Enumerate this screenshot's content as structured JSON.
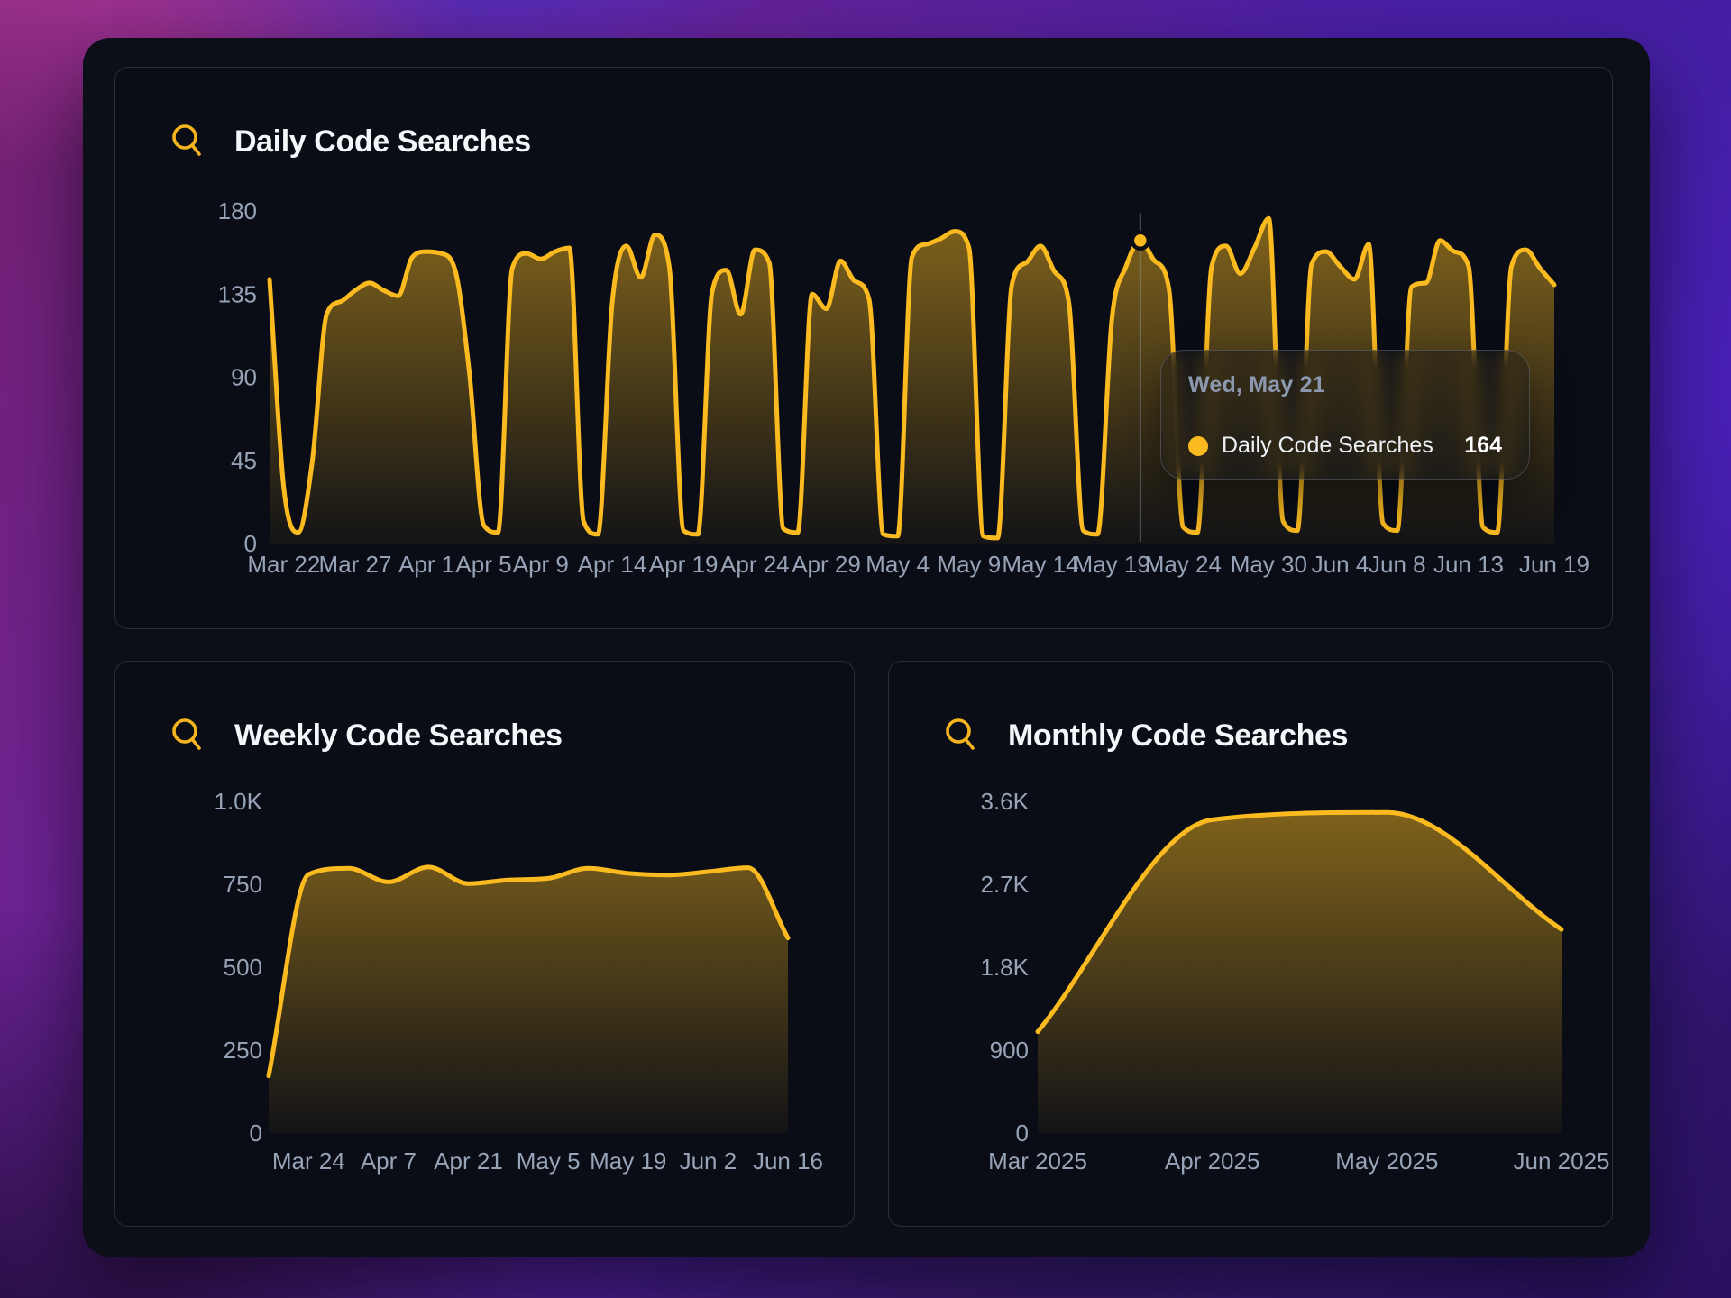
{
  "theme": {
    "accent": "#fbbb20",
    "window_bg": "#0c0f18",
    "panel_bg": "#0a0d16",
    "axis_text": "#97a3b6",
    "title_text": "#f4f6f9",
    "tooltip_date_color": "#8b98ae"
  },
  "tooltip": {
    "date": "Wed, May 21",
    "series_label": "Daily Code Searches",
    "value": "164",
    "dot_color": "#fbbb20"
  },
  "chart_data": [
    {
      "type": "area",
      "title": "Daily Code Searches",
      "icon": "search-icon",
      "xlabel": "",
      "ylabel": "",
      "ylim": [
        0,
        180
      ],
      "grid": false,
      "legend_position": "none",
      "line_color": "#fbbb20",
      "x_start": "Mar 21",
      "x_end": "Jun 19",
      "y_ticks": [
        {
          "label": "180",
          "value": 180
        },
        {
          "label": "135",
          "value": 135
        },
        {
          "label": "90",
          "value": 90
        },
        {
          "label": "45",
          "value": 45
        },
        {
          "label": "0",
          "value": 0
        }
      ],
      "x_ticks": [
        {
          "label": "Mar 22",
          "pos": 1
        },
        {
          "label": "Mar 27",
          "pos": 6
        },
        {
          "label": "Apr 1",
          "pos": 11
        },
        {
          "label": "Apr 5",
          "pos": 15
        },
        {
          "label": "Apr 9",
          "pos": 19
        },
        {
          "label": "Apr 14",
          "pos": 24
        },
        {
          "label": "Apr 19",
          "pos": 29
        },
        {
          "label": "Apr 24",
          "pos": 34
        },
        {
          "label": "Apr 29",
          "pos": 39
        },
        {
          "label": "May 4",
          "pos": 44
        },
        {
          "label": "May 9",
          "pos": 49
        },
        {
          "label": "May 14",
          "pos": 54
        },
        {
          "label": "May 19",
          "pos": 59
        },
        {
          "label": "May 24",
          "pos": 64
        },
        {
          "label": "May 30",
          "pos": 70
        },
        {
          "label": "Jun 4",
          "pos": 75
        },
        {
          "label": "Jun 8",
          "pos": 79
        },
        {
          "label": "Jun 13",
          "pos": 84
        },
        {
          "label": "Jun 19",
          "pos": 90
        }
      ],
      "values": [
        143,
        30,
        6,
        45,
        124,
        131,
        137,
        141,
        137,
        134,
        155,
        158,
        157,
        148,
        92,
        10,
        6,
        149,
        157,
        154,
        158,
        160,
        12,
        5,
        130,
        161,
        144,
        167,
        150,
        7,
        5,
        136,
        148,
        124,
        159,
        152,
        8,
        6,
        135,
        127,
        153,
        142,
        132,
        5,
        4,
        155,
        162,
        165,
        169,
        160,
        4,
        3,
        140,
        152,
        161,
        147,
        130,
        7,
        5,
        121,
        150,
        164,
        153,
        138,
        9,
        6,
        150,
        161,
        146,
        160,
        176,
        12,
        7,
        151,
        158,
        150,
        143,
        162,
        11,
        7,
        139,
        141,
        164,
        158,
        150,
        9,
        6,
        150,
        159,
        149,
        140
      ],
      "highlight": {
        "index": 61,
        "date": "Wed, May 21",
        "value": 164
      }
    },
    {
      "type": "area",
      "title": "Weekly Code Searches",
      "icon": "search-icon",
      "xlabel": "",
      "ylabel": "",
      "ylim": [
        0,
        1000
      ],
      "grid": false,
      "legend_position": "none",
      "line_color": "#fbbb20",
      "x_start": "Mar 17",
      "x_end": "Jun 16",
      "y_ticks": [
        {
          "label": "1.0K",
          "value": 1000
        },
        {
          "label": "750",
          "value": 750
        },
        {
          "label": "500",
          "value": 500
        },
        {
          "label": "250",
          "value": 250
        },
        {
          "label": "0",
          "value": 0
        }
      ],
      "x_ticks": [
        {
          "label": "Mar 24",
          "pos": 1
        },
        {
          "label": "Apr 7",
          "pos": 3
        },
        {
          "label": "Apr 21",
          "pos": 5
        },
        {
          "label": "May 5",
          "pos": 7
        },
        {
          "label": "May 19",
          "pos": 9
        },
        {
          "label": "Jun 2",
          "pos": 11
        },
        {
          "label": "Jun 16",
          "pos": 13
        }
      ],
      "values": [
        172,
        780,
        798,
        757,
        802,
        752,
        763,
        768,
        798,
        783,
        778,
        788,
        800,
        588
      ]
    },
    {
      "type": "area",
      "title": "Monthly Code Searches",
      "icon": "search-icon",
      "xlabel": "",
      "ylabel": "",
      "ylim": [
        0,
        3600
      ],
      "grid": false,
      "legend_position": "none",
      "line_color": "#fbbb20",
      "x_start": "Mar 2025",
      "x_end": "Jun 2025",
      "y_ticks": [
        {
          "label": "3.6K",
          "value": 3600
        },
        {
          "label": "2.7K",
          "value": 2700
        },
        {
          "label": "1.8K",
          "value": 1800
        },
        {
          "label": "900",
          "value": 900
        },
        {
          "label": "0",
          "value": 0
        }
      ],
      "x_ticks": [
        {
          "label": "Mar 2025",
          "pos": 0
        },
        {
          "label": "Apr 2025",
          "pos": 1
        },
        {
          "label": "May 2025",
          "pos": 2
        },
        {
          "label": "Jun 2025",
          "pos": 3
        }
      ],
      "values": [
        1100,
        3400,
        3480,
        2210
      ]
    }
  ]
}
